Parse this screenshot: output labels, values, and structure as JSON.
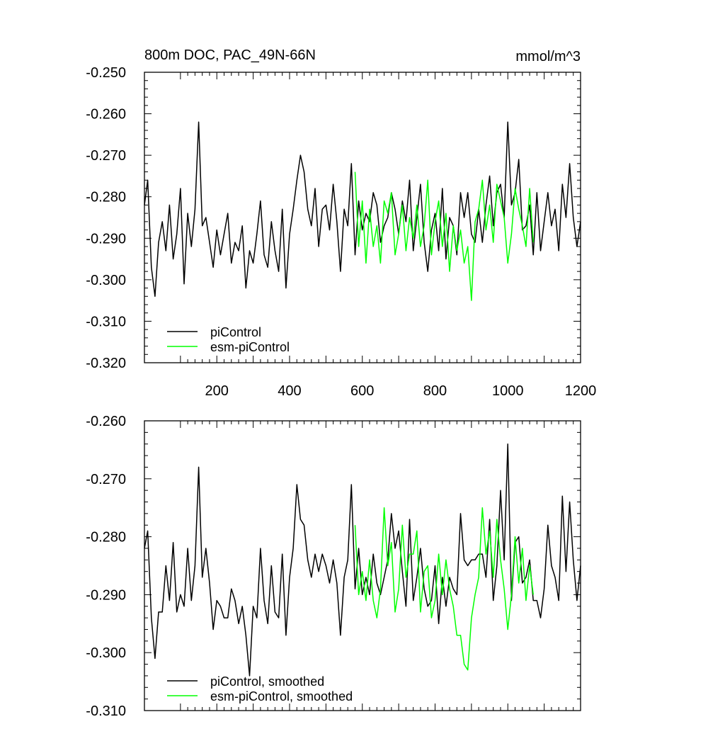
{
  "chart_data": [
    {
      "type": "line",
      "title": "800m DOC, PAC_49N-66N",
      "units": "mmol/m^3",
      "xlim": [
        1,
        1200
      ],
      "ylim": [
        -0.32,
        -0.25
      ],
      "xticks": [
        200,
        400,
        600,
        800,
        1000,
        1200
      ],
      "xtick_labels": [
        "200",
        "400",
        "600",
        "800",
        "1000",
        "1200"
      ],
      "yticks": [
        -0.25,
        -0.26,
        -0.27,
        -0.28,
        -0.29,
        -0.3,
        -0.31,
        -0.32
      ],
      "ytick_labels": [
        "-0.250",
        "-0.260",
        "-0.270",
        "-0.280",
        "-0.290",
        "-0.300",
        "-0.310",
        "-0.320"
      ],
      "grid": false,
      "legend": "bottom-left",
      "series": [
        {
          "name": "piControl",
          "color": "#000000",
          "x": [
            1,
            10,
            20,
            30,
            40,
            50,
            60,
            70,
            80,
            90,
            100,
            110,
            120,
            130,
            140,
            150,
            160,
            170,
            180,
            190,
            200,
            210,
            220,
            230,
            240,
            250,
            260,
            270,
            280,
            290,
            300,
            310,
            320,
            330,
            340,
            350,
            360,
            370,
            380,
            390,
            400,
            410,
            420,
            430,
            440,
            450,
            460,
            470,
            480,
            490,
            500,
            510,
            520,
            530,
            540,
            550,
            560,
            570,
            580,
            590,
            600,
            610,
            620,
            630,
            640,
            650,
            660,
            670,
            680,
            690,
            700,
            710,
            720,
            730,
            740,
            750,
            760,
            770,
            780,
            790,
            800,
            810,
            820,
            830,
            840,
            850,
            860,
            870,
            880,
            890,
            900,
            910,
            920,
            930,
            940,
            950,
            960,
            970,
            980,
            990,
            1000,
            1010,
            1020,
            1030,
            1040,
            1050,
            1060,
            1070,
            1080,
            1090,
            1100,
            1110,
            1120,
            1130,
            1140,
            1150,
            1160,
            1170,
            1180,
            1190,
            1200
          ],
          "values": [
            -0.282,
            -0.276,
            -0.297,
            -0.304,
            -0.291,
            -0.286,
            -0.293,
            -0.282,
            -0.295,
            -0.289,
            -0.278,
            -0.301,
            -0.284,
            -0.292,
            -0.283,
            -0.262,
            -0.287,
            -0.285,
            -0.291,
            -0.297,
            -0.288,
            -0.294,
            -0.289,
            -0.284,
            -0.296,
            -0.291,
            -0.293,
            -0.287,
            -0.302,
            -0.293,
            -0.296,
            -0.289,
            -0.281,
            -0.294,
            -0.297,
            -0.286,
            -0.293,
            -0.298,
            -0.283,
            -0.302,
            -0.289,
            -0.283,
            -0.276,
            -0.27,
            -0.274,
            -0.283,
            -0.287,
            -0.278,
            -0.292,
            -0.283,
            -0.282,
            -0.288,
            -0.277,
            -0.286,
            -0.298,
            -0.283,
            -0.287,
            -0.272,
            -0.294,
            -0.281,
            -0.288,
            -0.284,
            -0.286,
            -0.279,
            -0.282,
            -0.291,
            -0.287,
            -0.285,
            -0.279,
            -0.283,
            -0.289,
            -0.281,
            -0.286,
            -0.276,
            -0.293,
            -0.285,
            -0.277,
            -0.291,
            -0.298,
            -0.288,
            -0.284,
            -0.293,
            -0.278,
            -0.295,
            -0.285,
            -0.287,
            -0.294,
            -0.279,
            -0.285,
            -0.279,
            -0.289,
            -0.291,
            -0.283,
            -0.291,
            -0.282,
            -0.275,
            -0.287,
            -0.279,
            -0.277,
            -0.285,
            -0.262,
            -0.282,
            -0.279,
            -0.271,
            -0.288,
            -0.287,
            -0.282,
            -0.294,
            -0.279,
            -0.293,
            -0.286,
            -0.279,
            -0.287,
            -0.283,
            -0.293,
            -0.277,
            -0.285,
            -0.272,
            -0.285,
            -0.292,
            -0.286
          ]
        },
        {
          "name": "esm-piControl",
          "color": "#00ff00",
          "x": [
            580,
            590,
            600,
            610,
            620,
            630,
            640,
            650,
            660,
            670,
            680,
            690,
            700,
            710,
            720,
            730,
            740,
            750,
            760,
            770,
            780,
            790,
            800,
            810,
            820,
            830,
            840,
            850,
            860,
            870,
            880,
            890,
            900,
            910,
            920,
            930,
            940,
            950,
            960,
            970,
            980,
            990,
            1000,
            1010,
            1020,
            1030,
            1040,
            1050,
            1060,
            1070
          ],
          "values": [
            -0.274,
            -0.292,
            -0.281,
            -0.296,
            -0.283,
            -0.292,
            -0.287,
            -0.296,
            -0.281,
            -0.284,
            -0.279,
            -0.294,
            -0.289,
            -0.282,
            -0.293,
            -0.285,
            -0.29,
            -0.282,
            -0.292,
            -0.287,
            -0.276,
            -0.294,
            -0.286,
            -0.281,
            -0.292,
            -0.284,
            -0.298,
            -0.287,
            -0.293,
            -0.288,
            -0.296,
            -0.292,
            -0.305,
            -0.286,
            -0.283,
            -0.276,
            -0.288,
            -0.282,
            -0.291,
            -0.277,
            -0.281,
            -0.285,
            -0.296,
            -0.289,
            -0.278,
            -0.283,
            -0.287,
            -0.292,
            -0.278,
            -0.291
          ]
        }
      ]
    },
    {
      "type": "line",
      "title": "",
      "xlim": [
        1,
        1200
      ],
      "ylim": [
        -0.31,
        -0.26
      ],
      "yticks": [
        -0.26,
        -0.27,
        -0.28,
        -0.29,
        -0.3,
        -0.31
      ],
      "ytick_labels": [
        "-0.260",
        "-0.270",
        "-0.280",
        "-0.290",
        "-0.300",
        "-0.310"
      ],
      "grid": false,
      "legend": "bottom-left",
      "series": [
        {
          "name": "piControl, smoothed",
          "color": "#000000",
          "x": [
            1,
            10,
            20,
            30,
            40,
            50,
            60,
            70,
            80,
            90,
            100,
            110,
            120,
            130,
            140,
            150,
            160,
            170,
            180,
            190,
            200,
            210,
            220,
            230,
            240,
            250,
            260,
            270,
            280,
            290,
            300,
            310,
            320,
            330,
            340,
            350,
            360,
            370,
            380,
            390,
            400,
            410,
            420,
            430,
            440,
            450,
            460,
            470,
            480,
            490,
            500,
            510,
            520,
            530,
            540,
            550,
            560,
            570,
            580,
            590,
            600,
            610,
            620,
            630,
            640,
            650,
            660,
            670,
            680,
            690,
            700,
            710,
            720,
            730,
            740,
            750,
            760,
            770,
            780,
            790,
            800,
            810,
            820,
            830,
            840,
            850,
            860,
            870,
            880,
            890,
            900,
            910,
            920,
            930,
            940,
            950,
            960,
            970,
            980,
            990,
            1000,
            1010,
            1020,
            1030,
            1040,
            1050,
            1060,
            1070,
            1080,
            1090,
            1100,
            1110,
            1120,
            1130,
            1140,
            1150,
            1160,
            1170,
            1180,
            1190,
            1200
          ],
          "values": [
            -0.282,
            -0.279,
            -0.294,
            -0.301,
            -0.293,
            -0.293,
            -0.285,
            -0.291,
            -0.281,
            -0.293,
            -0.29,
            -0.292,
            -0.282,
            -0.291,
            -0.285,
            -0.268,
            -0.287,
            -0.282,
            -0.288,
            -0.296,
            -0.291,
            -0.292,
            -0.294,
            -0.294,
            -0.289,
            -0.291,
            -0.295,
            -0.292,
            -0.297,
            -0.304,
            -0.292,
            -0.294,
            -0.282,
            -0.291,
            -0.295,
            -0.285,
            -0.293,
            -0.294,
            -0.283,
            -0.297,
            -0.287,
            -0.282,
            -0.271,
            -0.277,
            -0.278,
            -0.284,
            -0.287,
            -0.283,
            -0.286,
            -0.283,
            -0.285,
            -0.288,
            -0.284,
            -0.288,
            -0.297,
            -0.287,
            -0.284,
            -0.271,
            -0.289,
            -0.282,
            -0.29,
            -0.287,
            -0.29,
            -0.283,
            -0.288,
            -0.29,
            -0.287,
            -0.284,
            -0.276,
            -0.282,
            -0.279,
            -0.286,
            -0.292,
            -0.277,
            -0.291,
            -0.287,
            -0.282,
            -0.289,
            -0.292,
            -0.291,
            -0.285,
            -0.295,
            -0.287,
            -0.292,
            -0.287,
            -0.289,
            -0.29,
            -0.276,
            -0.284,
            -0.285,
            -0.284,
            -0.284,
            -0.283,
            -0.283,
            -0.287,
            -0.277,
            -0.291,
            -0.285,
            -0.272,
            -0.284,
            -0.264,
            -0.291,
            -0.281,
            -0.28,
            -0.288,
            -0.287,
            -0.284,
            -0.291,
            -0.291,
            -0.294,
            -0.289,
            -0.278,
            -0.285,
            -0.287,
            -0.291,
            -0.273,
            -0.286,
            -0.274,
            -0.284,
            -0.291,
            -0.285
          ]
        },
        {
          "name": "esm-piControl, smoothed",
          "color": "#00ff00",
          "x": [
            580,
            590,
            600,
            610,
            620,
            630,
            640,
            650,
            660,
            670,
            680,
            690,
            700,
            710,
            720,
            730,
            740,
            750,
            760,
            770,
            780,
            790,
            800,
            810,
            820,
            830,
            840,
            850,
            860,
            870,
            880,
            890,
            900,
            910,
            920,
            930,
            940,
            950,
            960,
            970,
            980,
            990,
            1000,
            1010,
            1020,
            1030,
            1040,
            1050,
            1060,
            1070
          ],
          "values": [
            -0.278,
            -0.29,
            -0.286,
            -0.291,
            -0.284,
            -0.291,
            -0.294,
            -0.289,
            -0.275,
            -0.285,
            -0.281,
            -0.293,
            -0.289,
            -0.278,
            -0.287,
            -0.283,
            -0.283,
            -0.279,
            -0.293,
            -0.286,
            -0.285,
            -0.294,
            -0.291,
            -0.283,
            -0.29,
            -0.284,
            -0.289,
            -0.292,
            -0.297,
            -0.297,
            -0.302,
            -0.303,
            -0.294,
            -0.29,
            -0.287,
            -0.275,
            -0.283,
            -0.279,
            -0.287,
            -0.277,
            -0.284,
            -0.289,
            -0.296,
            -0.29,
            -0.28,
            -0.288,
            -0.282,
            -0.291,
            -0.285,
            -0.29
          ]
        }
      ]
    }
  ]
}
